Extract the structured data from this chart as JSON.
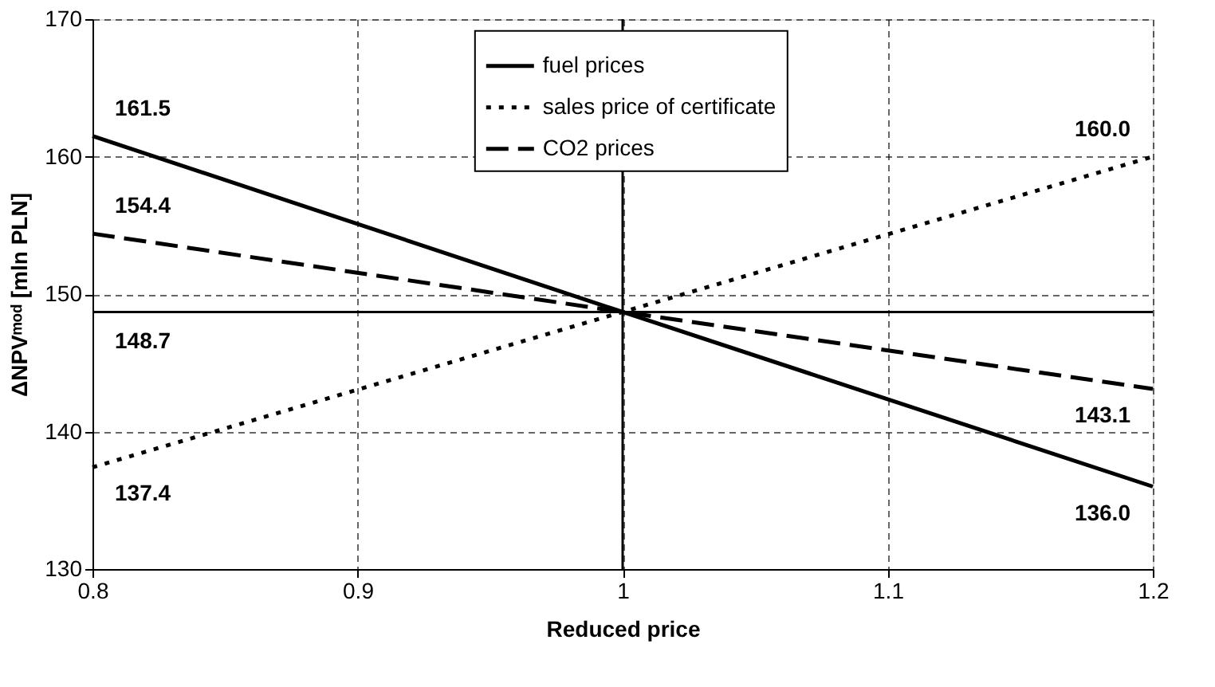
{
  "chart_data": {
    "type": "line",
    "xlabel": "Reduced price",
    "ylabel": "ΔNPVᵐᵒᵈ [mln PLN]",
    "x": [
      0.8,
      1,
      1.2
    ],
    "series": [
      {
        "name": "fuel prices",
        "color": "#000000",
        "line_style": "solid",
        "values": [
          161.5,
          148.7,
          136.0
        ],
        "value_labels": [
          "161.5",
          null,
          "136.0"
        ]
      },
      {
        "name": "sales price of certificate",
        "color": "#000000",
        "line_style": "dotted",
        "values": [
          137.4,
          148.7,
          160.0
        ],
        "value_labels": [
          "137.4",
          null,
          "160.0"
        ]
      },
      {
        "name": "CO2 prices",
        "color": "#000000",
        "line_style": "dashed",
        "values": [
          154.4,
          148.7,
          143.1
        ],
        "value_labels": [
          "154.4",
          null,
          "143.1"
        ]
      }
    ],
    "xlim": [
      0.8,
      1.2
    ],
    "xticks": [
      0.8,
      0.9,
      1,
      1.1,
      1.2
    ],
    "ylim": [
      130,
      170
    ],
    "yticks": [
      130,
      140,
      150,
      160,
      170
    ],
    "grid": true,
    "legend": "top",
    "marker": "none",
    "ref_lines": [
      {
        "axis": "y",
        "value": 148.7,
        "label": "148.7",
        "color": "#000000",
        "line_style": "solid"
      },
      {
        "axis": "x",
        "value": 1,
        "label": null,
        "color": "#000000",
        "line_style": "solid"
      }
    ]
  }
}
